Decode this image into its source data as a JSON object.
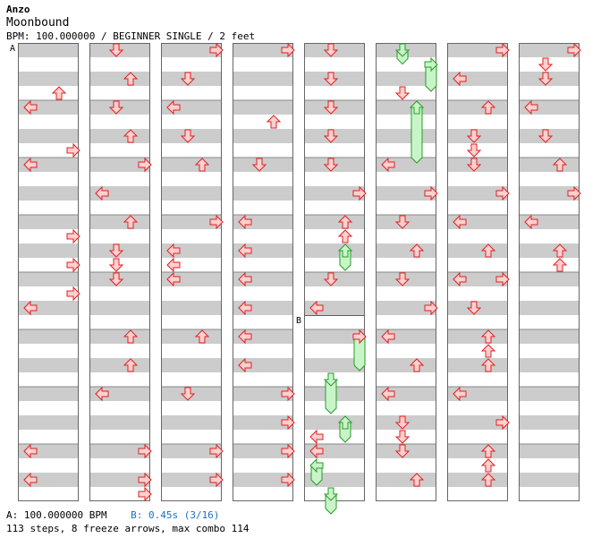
{
  "song": {
    "artist": "Anzo",
    "title": "Moonbound",
    "info_line": "BPM: 100.000000 / BEGINNER SINGLE / 2 feet"
  },
  "markers": [
    {
      "label": "A",
      "column": 0,
      "beat": 0
    },
    {
      "label": "B",
      "column": 4,
      "beat": 19
    }
  ],
  "chart_data": {
    "type": "step-chart",
    "columns": 8,
    "beats_per_column": 32,
    "lanes": [
      "left",
      "down",
      "up",
      "right"
    ],
    "arrows": [
      [
        0,
        3,
        "up"
      ],
      [
        0,
        4,
        "left"
      ],
      [
        0,
        7,
        "right"
      ],
      [
        0,
        8,
        "left"
      ],
      [
        0,
        13,
        "right"
      ],
      [
        0,
        15,
        "right"
      ],
      [
        0,
        17,
        "right"
      ],
      [
        0,
        18,
        "left"
      ],
      [
        0,
        28,
        "left"
      ],
      [
        0,
        30,
        "left"
      ],
      [
        1,
        0,
        "down"
      ],
      [
        1,
        2,
        "up"
      ],
      [
        1,
        4,
        "down"
      ],
      [
        1,
        6,
        "up"
      ],
      [
        1,
        8,
        "right"
      ],
      [
        1,
        10,
        "left"
      ],
      [
        1,
        12,
        "up"
      ],
      [
        1,
        14,
        "down"
      ],
      [
        1,
        15,
        "down"
      ],
      [
        1,
        16,
        "down"
      ],
      [
        1,
        20,
        "up"
      ],
      [
        1,
        22,
        "up"
      ],
      [
        1,
        24,
        "left"
      ],
      [
        1,
        28,
        "right"
      ],
      [
        1,
        30,
        "right"
      ],
      [
        1,
        31,
        "right"
      ],
      [
        2,
        0,
        "right"
      ],
      [
        2,
        2,
        "down"
      ],
      [
        2,
        4,
        "left"
      ],
      [
        2,
        6,
        "down"
      ],
      [
        2,
        8,
        "up"
      ],
      [
        2,
        12,
        "right"
      ],
      [
        2,
        14,
        "left"
      ],
      [
        2,
        15,
        "left"
      ],
      [
        2,
        16,
        "left"
      ],
      [
        2,
        20,
        "up"
      ],
      [
        2,
        24,
        "down"
      ],
      [
        2,
        28,
        "right"
      ],
      [
        2,
        30,
        "right"
      ],
      [
        3,
        0,
        "right"
      ],
      [
        3,
        5,
        "up"
      ],
      [
        3,
        8,
        "down"
      ],
      [
        3,
        12,
        "left"
      ],
      [
        3,
        14,
        "left"
      ],
      [
        3,
        16,
        "left"
      ],
      [
        3,
        18,
        "left"
      ],
      [
        3,
        20,
        "left"
      ],
      [
        3,
        22,
        "left"
      ],
      [
        3,
        24,
        "right"
      ],
      [
        3,
        26,
        "right"
      ],
      [
        3,
        28,
        "right"
      ],
      [
        3,
        30,
        "right"
      ],
      [
        4,
        0,
        "down"
      ],
      [
        4,
        2,
        "down"
      ],
      [
        4,
        4,
        "down"
      ],
      [
        4,
        6,
        "down"
      ],
      [
        4,
        8,
        "down"
      ],
      [
        4,
        10,
        "right"
      ],
      [
        4,
        12,
        "up"
      ],
      [
        4,
        13,
        "up"
      ],
      [
        4,
        16,
        "down"
      ],
      [
        4,
        18,
        "left"
      ],
      [
        4,
        20,
        "right"
      ],
      [
        4,
        27,
        "left"
      ],
      [
        4,
        28,
        "left"
      ],
      [
        5,
        3,
        "down"
      ],
      [
        5,
        8,
        "left"
      ],
      [
        5,
        10,
        "right"
      ],
      [
        5,
        12,
        "down"
      ],
      [
        5,
        14,
        "up"
      ],
      [
        5,
        16,
        "down"
      ],
      [
        5,
        18,
        "right"
      ],
      [
        5,
        20,
        "left"
      ],
      [
        5,
        22,
        "up"
      ],
      [
        5,
        24,
        "left"
      ],
      [
        5,
        26,
        "down"
      ],
      [
        5,
        27,
        "down"
      ],
      [
        5,
        28,
        "down"
      ],
      [
        5,
        30,
        "up"
      ],
      [
        6,
        0,
        "right"
      ],
      [
        6,
        2,
        "left"
      ],
      [
        6,
        4,
        "up"
      ],
      [
        6,
        6,
        "down"
      ],
      [
        6,
        7,
        "down"
      ],
      [
        6,
        8,
        "down"
      ],
      [
        6,
        10,
        "right"
      ],
      [
        6,
        12,
        "left"
      ],
      [
        6,
        14,
        "up"
      ],
      [
        6,
        16,
        "left"
      ],
      [
        6,
        16,
        "right"
      ],
      [
        6,
        18,
        "down"
      ],
      [
        6,
        20,
        "up"
      ],
      [
        6,
        21,
        "up"
      ],
      [
        6,
        22,
        "up"
      ],
      [
        6,
        24,
        "left"
      ],
      [
        6,
        26,
        "right"
      ],
      [
        6,
        28,
        "up"
      ],
      [
        6,
        29,
        "up"
      ],
      [
        6,
        30,
        "up"
      ],
      [
        7,
        0,
        "right"
      ],
      [
        7,
        1,
        "down"
      ],
      [
        7,
        2,
        "down"
      ],
      [
        7,
        4,
        "left"
      ],
      [
        7,
        6,
        "down"
      ],
      [
        7,
        8,
        "up"
      ],
      [
        7,
        10,
        "right"
      ],
      [
        7,
        12,
        "left"
      ],
      [
        7,
        14,
        "up"
      ],
      [
        7,
        15,
        "up"
      ]
    ],
    "freezes": [
      [
        4,
        14,
        15,
        "up"
      ],
      [
        4,
        20,
        22,
        "right"
      ],
      [
        4,
        23,
        25,
        "down"
      ],
      [
        4,
        26,
        27,
        "up"
      ],
      [
        4,
        29,
        30,
        "left"
      ],
      [
        4,
        31,
        32,
        "down"
      ],
      [
        5,
        0,
        0.6,
        "down"
      ],
      [
        5,
        1,
        2.5,
        "right"
      ],
      [
        5,
        4,
        7.5,
        "up"
      ]
    ]
  },
  "footer": {
    "bpm_a": "A: 100.000000 BPM",
    "bpm_b": "B: 0.45s (3/16)",
    "stats": "113 steps, 8 freeze arrows, max combo 114"
  },
  "colors": {
    "arrow_fill": "#ffd0d0",
    "arrow_stroke": "#e02020",
    "freeze_fill": "#c8f5c8",
    "freeze_stroke": "#2a9a2a",
    "stripe": "#cccccc",
    "marker_line": "#1a6fc4"
  }
}
